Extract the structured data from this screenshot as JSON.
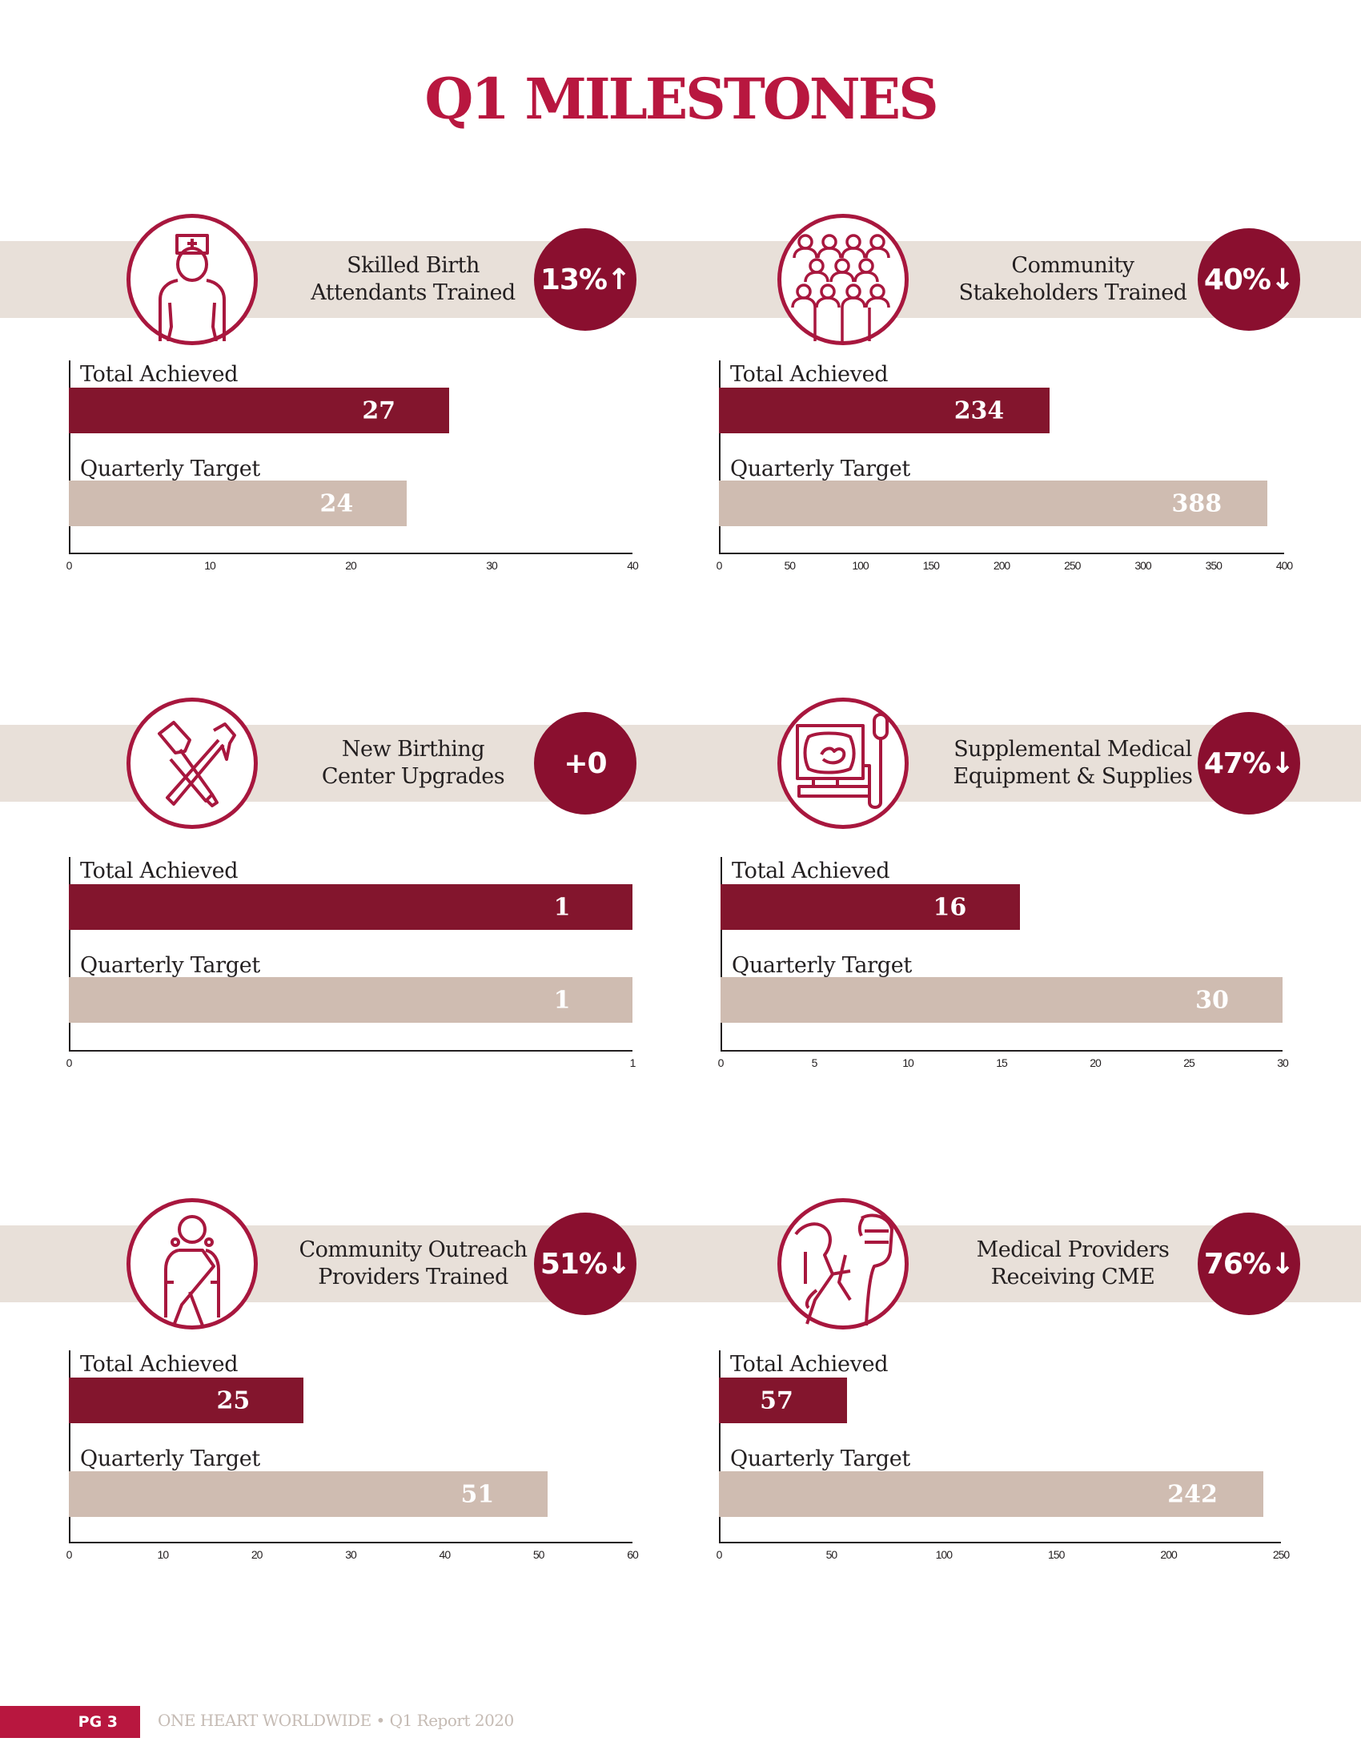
{
  "page": {
    "title": "Q1 MILESTONES",
    "colors": {
      "title": "#b8173f",
      "band": "#e8e0d9",
      "icon_stroke": "#a8173e",
      "badge": "#8a0f2f",
      "achieved_bar": "#83152d",
      "target_bar": "#cfbcb1"
    },
    "footer": {
      "page_label": "PG 3",
      "text": "ONE HEART WORLDWIDE • Q1 Report 2020"
    }
  },
  "metrics": [
    {
      "label_line1": "Skilled Birth",
      "label_line2": "Attendants Trained",
      "badge": "13%↑",
      "icon": "nurse-icon",
      "achieved_label": "Total Achieved",
      "target_label": "Quarterly Target",
      "achieved": "27",
      "target": "24",
      "ticks": [
        "0",
        "10",
        "20",
        "30",
        "40"
      ]
    },
    {
      "label_line1": "Community",
      "label_line2": "Stakeholders Trained",
      "badge": "40%↓",
      "icon": "crowd-icon",
      "achieved_label": "Total Achieved",
      "target_label": "Quarterly Target",
      "achieved": "234",
      "target": "388",
      "ticks": [
        "0",
        "50",
        "100",
        "150",
        "200",
        "250",
        "300",
        "350",
        "400"
      ]
    },
    {
      "label_line1": "New Birthing",
      "label_line2": "Center Upgrades",
      "badge": "+0",
      "icon": "hammer-brush-icon",
      "achieved_label": "Total Achieved",
      "target_label": "Quarterly Target",
      "achieved": "1",
      "target": "1",
      "ticks": [
        "0",
        "1"
      ]
    },
    {
      "label_line1": "Supplemental Medical",
      "label_line2": "Equipment & Supplies",
      "badge": "47%↓",
      "icon": "ultrasound-icon",
      "achieved_label": "Total Achieved",
      "target_label": "Quarterly Target",
      "achieved": "16",
      "target": "30",
      "ticks": [
        "0",
        "5",
        "10",
        "15",
        "20",
        "25",
        "30"
      ]
    },
    {
      "label_line1": "Community Outreach",
      "label_line2": "Providers Trained",
      "badge": "51%↓",
      "icon": "woman-sari-icon",
      "achieved_label": "Total Achieved",
      "target_label": "Quarterly Target",
      "achieved": "25",
      "target": "51",
      "ticks": [
        "0",
        "10",
        "20",
        "30",
        "40",
        "50",
        "60"
      ]
    },
    {
      "label_line1": "Medical Providers",
      "label_line2": "Receiving CME",
      "badge": "76%↓",
      "icon": "doctor-patient-icon",
      "achieved_label": "Total Achieved",
      "target_label": "Quarterly Target",
      "achieved": "57",
      "target": "242",
      "ticks": [
        "0",
        "50",
        "100",
        "150",
        "200",
        "250"
      ]
    }
  ],
  "chart_data": [
    {
      "type": "bar",
      "title": "Skilled Birth Attendants Trained",
      "annotation": "13%↑",
      "categories": [
        "Total Achieved",
        "Quarterly Target"
      ],
      "values": [
        27,
        24
      ],
      "xlim": [
        0,
        40
      ],
      "xticks": [
        0,
        10,
        20,
        30,
        40
      ],
      "orientation": "horizontal",
      "grid": false
    },
    {
      "type": "bar",
      "title": "Community Stakeholders Trained",
      "annotation": "40%↓",
      "categories": [
        "Total Achieved",
        "Quarterly Target"
      ],
      "values": [
        234,
        388
      ],
      "xlim": [
        0,
        400
      ],
      "xticks": [
        0,
        50,
        100,
        150,
        200,
        250,
        300,
        350,
        400
      ],
      "orientation": "horizontal",
      "grid": false
    },
    {
      "type": "bar",
      "title": "New Birthing Center Upgrades",
      "annotation": "+0",
      "categories": [
        "Total Achieved",
        "Quarterly Target"
      ],
      "values": [
        1,
        1
      ],
      "xlim": [
        0,
        1
      ],
      "xticks": [
        0,
        1
      ],
      "orientation": "horizontal",
      "grid": false
    },
    {
      "type": "bar",
      "title": "Supplemental Medical Equipment & Supplies",
      "annotation": "47%↓",
      "categories": [
        "Total Achieved",
        "Quarterly Target"
      ],
      "values": [
        16,
        30
      ],
      "xlim": [
        0,
        30
      ],
      "xticks": [
        0,
        5,
        10,
        15,
        20,
        25,
        30
      ],
      "orientation": "horizontal",
      "grid": false
    },
    {
      "type": "bar",
      "title": "Community Outreach Providers Trained",
      "annotation": "51%↓",
      "categories": [
        "Total Achieved",
        "Quarterly Target"
      ],
      "values": [
        25,
        51
      ],
      "xlim": [
        0,
        60
      ],
      "xticks": [
        0,
        10,
        20,
        30,
        40,
        50,
        60
      ],
      "orientation": "horizontal",
      "grid": false
    },
    {
      "type": "bar",
      "title": "Medical Providers Receiving CME",
      "annotation": "76%↓",
      "categories": [
        "Total Achieved",
        "Quarterly Target"
      ],
      "values": [
        57,
        242
      ],
      "xlim": [
        0,
        250
      ],
      "xticks": [
        0,
        50,
        100,
        150,
        200,
        250
      ],
      "orientation": "horizontal",
      "grid": false
    }
  ]
}
